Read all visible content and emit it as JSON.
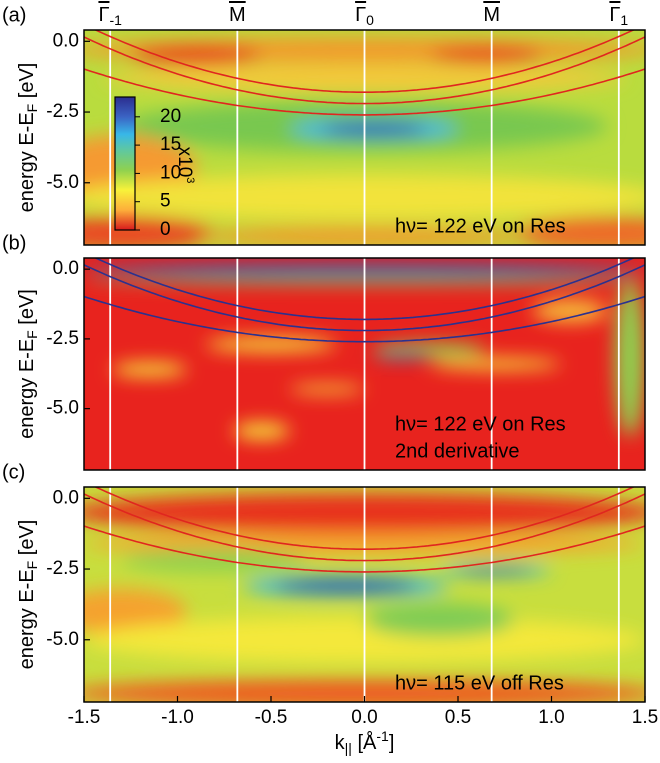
{
  "chart_data": [
    {
      "type": "heatmap",
      "panel_label": "(a)",
      "ylabel": {
        "main": "energy E-E",
        "sub": "F",
        "unit": " [eV]"
      },
      "xlim": [
        -1.5,
        1.5
      ],
      "ylim": [
        -7.2,
        0.4
      ],
      "yticks": [
        {
          "value": 0,
          "label": "0.0"
        },
        {
          "value": -2.5,
          "label": "-2.5"
        },
        {
          "value": -5,
          "label": "-5.0"
        }
      ],
      "symmetry_points": [
        {
          "symbol": "Γ",
          "sub": "-1",
          "x": -1.36
        },
        {
          "symbol": "M",
          "sub": "",
          "x": -0.68
        },
        {
          "symbol": "Γ",
          "sub": "0",
          "x": 0
        },
        {
          "symbol": "M",
          "sub": "",
          "x": 0.68
        },
        {
          "symbol": "Γ",
          "sub": "1",
          "x": 1.36
        }
      ],
      "colorbar": {
        "lim": [
          0,
          23.5
        ],
        "ticks": [
          0,
          5,
          10,
          15,
          20
        ],
        "label": {
          "main": "x10",
          "sup": "3"
        }
      },
      "band_color": "#e0261f",
      "annotation": [
        "hν= 122 eV on Res"
      ]
    },
    {
      "type": "heatmap",
      "panel_label": "(b)",
      "ylabel": {
        "main": "energy E-E",
        "sub": "F",
        "unit": " [eV]"
      },
      "xlim": [
        -1.5,
        1.5
      ],
      "ylim": [
        -7.2,
        0.4
      ],
      "yticks": [
        {
          "value": 0,
          "label": "0.0"
        },
        {
          "value": -2.5,
          "label": "-2.5"
        },
        {
          "value": -5,
          "label": "-5.0"
        }
      ],
      "band_color": "#2b318f",
      "annotation": [
        "hν= 122 eV on Res",
        "2nd derivative"
      ]
    },
    {
      "type": "heatmap",
      "panel_label": "(c)",
      "ylabel": {
        "main": "energy E-E",
        "sub": "F",
        "unit": " [eV]"
      },
      "xlabel": {
        "main": "k",
        "sub": "||",
        "unit": " [Å",
        "unit_sup": "-1",
        "end": "]"
      },
      "xlim": [
        -1.5,
        1.5
      ],
      "ylim": [
        -7.2,
        0.4
      ],
      "xticks": [
        -1.5,
        {
          "value": -1,
          "label": "-1.0"
        },
        -0.5,
        {
          "value": 0,
          "label": "0.0"
        },
        0.5,
        {
          "value": 1,
          "label": "1.0"
        },
        1.5
      ],
      "yticks": [
        {
          "value": 0,
          "label": "0.0"
        },
        {
          "value": -2.5,
          "label": "-2.5"
        },
        {
          "value": -5,
          "label": "-5.0"
        }
      ],
      "band_color": "#e0261f",
      "annotation": [
        "hν= 115 eV off Res"
      ]
    }
  ]
}
